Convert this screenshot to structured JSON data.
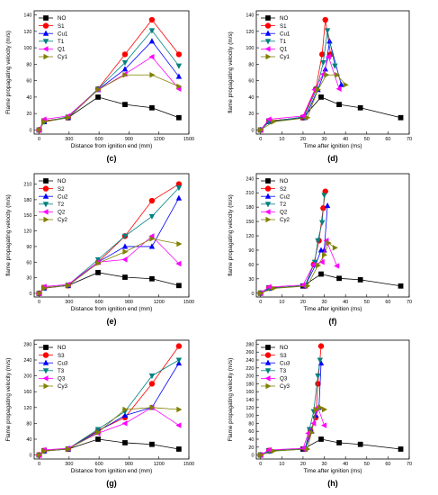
{
  "chart_data": [
    {
      "type": "line",
      "label": "(c)",
      "xlabel": "Distance from ignition end (mm)",
      "ylabel": "Flame propagating velocity (m/s)",
      "xlim": [
        -50,
        1500
      ],
      "ylim": [
        -5,
        145
      ],
      "xticks": [
        0,
        300,
        600,
        900,
        1200,
        1500
      ],
      "yticks": [
        0,
        20,
        40,
        60,
        80,
        100,
        120,
        140
      ],
      "legend": "top-left",
      "series": [
        {
          "name": "NO",
          "color": "#000000",
          "marker": "square",
          "x": [
            0,
            50,
            290,
            590,
            860,
            1130,
            1400
          ],
          "y": [
            0,
            11,
            15,
            40,
            31,
            27,
            15
          ]
        },
        {
          "name": "S1",
          "color": "#ff0000",
          "marker": "circle",
          "x": [
            0,
            50,
            290,
            590,
            860,
            1130,
            1400
          ],
          "y": [
            0,
            11,
            15,
            50,
            92,
            134,
            92
          ]
        },
        {
          "name": "Cu1",
          "color": "#0000ff",
          "marker": "triangle",
          "x": [
            0,
            50,
            290,
            590,
            860,
            1130,
            1400
          ],
          "y": [
            0,
            10,
            15,
            49,
            74,
            108,
            65
          ]
        },
        {
          "name": "T1",
          "color": "#008080",
          "marker": "tri-down",
          "x": [
            0,
            50,
            290,
            590,
            860,
            1130,
            1400
          ],
          "y": [
            0,
            10,
            16,
            50,
            82,
            121,
            78
          ]
        },
        {
          "name": "Q1",
          "color": "#ff00ff",
          "marker": "tri-left",
          "x": [
            0,
            50,
            290,
            590,
            860,
            1130,
            1400
          ],
          "y": [
            0,
            13,
            17,
            49,
            68,
            89,
            50
          ]
        },
        {
          "name": "Cy1",
          "color": "#808000",
          "marker": "tri-right",
          "x": [
            0,
            50,
            290,
            590,
            860,
            1130,
            1400
          ],
          "y": [
            0,
            10,
            15,
            49,
            67,
            67,
            53
          ]
        }
      ]
    },
    {
      "type": "line",
      "label": "(d)",
      "xlabel": "Time after ignition (ms)",
      "ylabel": "flame propagating velocity (m/s)",
      "xlim": [
        -2,
        70
      ],
      "ylim": [
        -5,
        145
      ],
      "xticks": [
        0,
        10,
        20,
        30,
        40,
        50,
        60,
        70
      ],
      "yticks": [
        0,
        20,
        40,
        60,
        80,
        100,
        120,
        140
      ],
      "legend": "top-left",
      "series": [
        {
          "name": "NO",
          "color": "#000000",
          "marker": "square",
          "x": [
            0,
            4,
            20,
            28.5,
            37,
            47,
            66
          ],
          "y": [
            0,
            11,
            15,
            40,
            31,
            27,
            15
          ]
        },
        {
          "name": "S1",
          "color": "#ff0000",
          "marker": "circle",
          "x": [
            0,
            4,
            20,
            26,
            29,
            30.5,
            33
          ],
          "y": [
            0,
            11,
            15,
            50,
            92,
            134,
            92
          ]
        },
        {
          "name": "Cu1",
          "color": "#0000ff",
          "marker": "triangle",
          "x": [
            0,
            4,
            21,
            27,
            30.5,
            32.5,
            38
          ],
          "y": [
            0,
            10,
            15,
            49,
            74,
            108,
            55
          ]
        },
        {
          "name": "T1",
          "color": "#008080",
          "marker": "tri-down",
          "x": [
            0,
            4,
            20.5,
            26.5,
            29.5,
            31.5,
            35
          ],
          "y": [
            0,
            10,
            16,
            50,
            82,
            121,
            78
          ]
        },
        {
          "name": "Q1",
          "color": "#ff00ff",
          "marker": "tri-left",
          "x": [
            0,
            4,
            20,
            25.5,
            29.5,
            32,
            37
          ],
          "y": [
            0,
            13,
            17,
            49,
            68,
            89,
            50
          ]
        },
        {
          "name": "Cy1",
          "color": "#808000",
          "marker": "tri-right",
          "x": [
            0,
            6,
            22,
            27,
            31,
            36,
            40
          ],
          "y": [
            0,
            10,
            15,
            49,
            67,
            67,
            55
          ]
        }
      ]
    },
    {
      "type": "line",
      "label": "(e)",
      "xlabel": "Distance from ignition end (mm)",
      "ylabel": "flame propagating velocity (m/s)",
      "xlim": [
        -50,
        1500
      ],
      "ylim": [
        -7,
        230
      ],
      "xticks": [
        0,
        300,
        600,
        900,
        1200,
        1500
      ],
      "yticks": [
        0,
        30,
        60,
        90,
        120,
        150,
        180,
        210
      ],
      "legend": "top-left",
      "series": [
        {
          "name": "NO",
          "color": "#000000",
          "marker": "square",
          "x": [
            0,
            50,
            290,
            590,
            860,
            1130,
            1400
          ],
          "y": [
            0,
            11,
            15,
            40,
            31,
            28,
            15
          ]
        },
        {
          "name": "S2",
          "color": "#ff0000",
          "marker": "circle",
          "x": [
            0,
            50,
            290,
            590,
            860,
            1130,
            1400
          ],
          "y": [
            0,
            11,
            15,
            60,
            110,
            178,
            210
          ]
        },
        {
          "name": "Cu2",
          "color": "#0000ff",
          "marker": "triangle",
          "x": [
            0,
            50,
            290,
            590,
            860,
            1130,
            1400
          ],
          "y": [
            0,
            10,
            15,
            60,
            90,
            90,
            183
          ]
        },
        {
          "name": "T2",
          "color": "#008080",
          "marker": "tri-down",
          "x": [
            0,
            50,
            290,
            590,
            860,
            1130,
            1400
          ],
          "y": [
            0,
            10,
            16,
            65,
            110,
            148,
            203
          ]
        },
        {
          "name": "Q2",
          "color": "#ff00ff",
          "marker": "tri-left",
          "x": [
            0,
            50,
            290,
            590,
            860,
            1130,
            1400
          ],
          "y": [
            0,
            13,
            17,
            60,
            65,
            110,
            57
          ]
        },
        {
          "name": "Cy2",
          "color": "#808000",
          "marker": "tri-right",
          "x": [
            0,
            50,
            290,
            590,
            860,
            1130,
            1400
          ],
          "y": [
            0,
            10,
            15,
            58,
            80,
            105,
            95
          ]
        }
      ]
    },
    {
      "type": "line",
      "label": "(f)",
      "xlabel": "Time after ignition (ms)",
      "ylabel": "flame propagating velocity (m/s)",
      "xlim": [
        -2,
        70
      ],
      "ylim": [
        -8,
        250
      ],
      "xticks": [
        0,
        10,
        20,
        30,
        40,
        50,
        60,
        70
      ],
      "yticks": [
        0,
        30,
        60,
        90,
        120,
        150,
        180,
        210,
        240
      ],
      "legend": "top-left",
      "series": [
        {
          "name": "NO",
          "color": "#000000",
          "marker": "square",
          "x": [
            0,
            4,
            20,
            28.5,
            37,
            47,
            66
          ],
          "y": [
            0,
            11,
            15,
            40,
            31,
            28,
            15
          ]
        },
        {
          "name": "S2",
          "color": "#ff0000",
          "marker": "circle",
          "x": [
            0,
            4,
            21,
            25,
            27.5,
            29.5,
            30.5
          ],
          "y": [
            0,
            11,
            15,
            60,
            110,
            178,
            213
          ]
        },
        {
          "name": "Cu2",
          "color": "#0000ff",
          "marker": "triangle",
          "x": [
            0,
            4,
            21,
            26,
            28.5,
            30,
            31.5
          ],
          "y": [
            0,
            10,
            15,
            60,
            90,
            90,
            183
          ]
        },
        {
          "name": "T2",
          "color": "#008080",
          "marker": "tri-down",
          "x": [
            0,
            4,
            21,
            25.5,
            27,
            29,
            30
          ],
          "y": [
            0,
            10,
            16,
            65,
            110,
            148,
            205
          ]
        },
        {
          "name": "Q2",
          "color": "#ff00ff",
          "marker": "tri-left",
          "x": [
            0,
            4,
            20,
            25,
            29,
            31,
            36
          ],
          "y": [
            0,
            13,
            17,
            60,
            65,
            110,
            57
          ]
        },
        {
          "name": "Cy2",
          "color": "#808000",
          "marker": "tri-right",
          "x": [
            0,
            6,
            22,
            27,
            30,
            32,
            35
          ],
          "y": [
            0,
            10,
            15,
            58,
            80,
            105,
            95
          ]
        }
      ]
    },
    {
      "type": "line",
      "label": "(g)",
      "xlabel": "Distance from ignition end (mm)",
      "ylabel": "Flame propagating velocity (m/s)",
      "xlim": [
        -50,
        1500
      ],
      "ylim": [
        -10,
        290
      ],
      "xticks": [
        0,
        300,
        600,
        900,
        1200,
        1500
      ],
      "yticks": [
        0,
        40,
        80,
        120,
        160,
        200,
        240,
        280
      ],
      "legend": "top-left",
      "series": [
        {
          "name": "NO",
          "color": "#000000",
          "marker": "square",
          "x": [
            0,
            50,
            290,
            590,
            860,
            1130,
            1400
          ],
          "y": [
            0,
            11,
            15,
            40,
            31,
            27,
            15
          ]
        },
        {
          "name": "S3",
          "color": "#ff0000",
          "marker": "circle",
          "x": [
            0,
            50,
            290,
            590,
            860,
            1130,
            1400
          ],
          "y": [
            0,
            11,
            15,
            62,
            95,
            180,
            275
          ]
        },
        {
          "name": "Cu3",
          "color": "#0000ff",
          "marker": "triangle",
          "x": [
            0,
            50,
            290,
            590,
            860,
            1130,
            1400
          ],
          "y": [
            0,
            10,
            15,
            60,
            100,
            120,
            232
          ]
        },
        {
          "name": "T3",
          "color": "#008080",
          "marker": "tri-down",
          "x": [
            0,
            50,
            290,
            590,
            860,
            1130,
            1400
          ],
          "y": [
            0,
            10,
            16,
            65,
            110,
            200,
            240
          ]
        },
        {
          "name": "Q3",
          "color": "#ff00ff",
          "marker": "tri-left",
          "x": [
            0,
            50,
            290,
            590,
            860,
            1130,
            1400
          ],
          "y": [
            0,
            13,
            17,
            55,
            80,
            120,
            75
          ]
        },
        {
          "name": "Cy3",
          "color": "#808000",
          "marker": "tri-right",
          "x": [
            0,
            50,
            290,
            590,
            860,
            1130,
            1400
          ],
          "y": [
            0,
            10,
            15,
            57,
            115,
            120,
            115
          ]
        }
      ]
    },
    {
      "type": "line",
      "label": "(h)",
      "xlabel": "Time after ignition (ms)",
      "ylabel": "Flame propagating velocity (m/s)",
      "xlim": [
        -2,
        70
      ],
      "ylim": [
        -10,
        290
      ],
      "xticks": [
        0,
        10,
        20,
        30,
        40,
        50,
        60,
        70
      ],
      "yticks": [
        0,
        20,
        40,
        60,
        80,
        100,
        120,
        140,
        160,
        180,
        200,
        220,
        240,
        260,
        280
      ],
      "legend": "top-left",
      "series": [
        {
          "name": "NO",
          "color": "#000000",
          "marker": "square",
          "x": [
            0,
            4,
            20,
            28.5,
            37,
            47,
            66
          ],
          "y": [
            0,
            11,
            15,
            40,
            31,
            27,
            15
          ]
        },
        {
          "name": "S3",
          "color": "#ff0000",
          "marker": "circle",
          "x": [
            0,
            4,
            21,
            23.5,
            26,
            27,
            28.5
          ],
          "y": [
            0,
            11,
            15,
            62,
            95,
            180,
            275
          ]
        },
        {
          "name": "Cu3",
          "color": "#0000ff",
          "marker": "triangle",
          "x": [
            0,
            4,
            21,
            24,
            26,
            27.5,
            28.5
          ],
          "y": [
            0,
            10,
            15,
            60,
            100,
            120,
            232
          ]
        },
        {
          "name": "T3",
          "color": "#008080",
          "marker": "tri-down",
          "x": [
            0,
            4,
            21,
            23,
            25,
            27,
            28
          ],
          "y": [
            0,
            10,
            16,
            65,
            110,
            200,
            240
          ]
        },
        {
          "name": "Q3",
          "color": "#ff00ff",
          "marker": "tri-left",
          "x": [
            0,
            4,
            20,
            22.5,
            25,
            27,
            30
          ],
          "y": [
            0,
            13,
            17,
            55,
            80,
            120,
            75
          ]
        },
        {
          "name": "Cy3",
          "color": "#808000",
          "marker": "tri-right",
          "x": [
            0,
            6,
            22,
            24,
            26,
            28,
            30
          ],
          "y": [
            0,
            10,
            15,
            57,
            115,
            120,
            115
          ]
        }
      ]
    }
  ]
}
